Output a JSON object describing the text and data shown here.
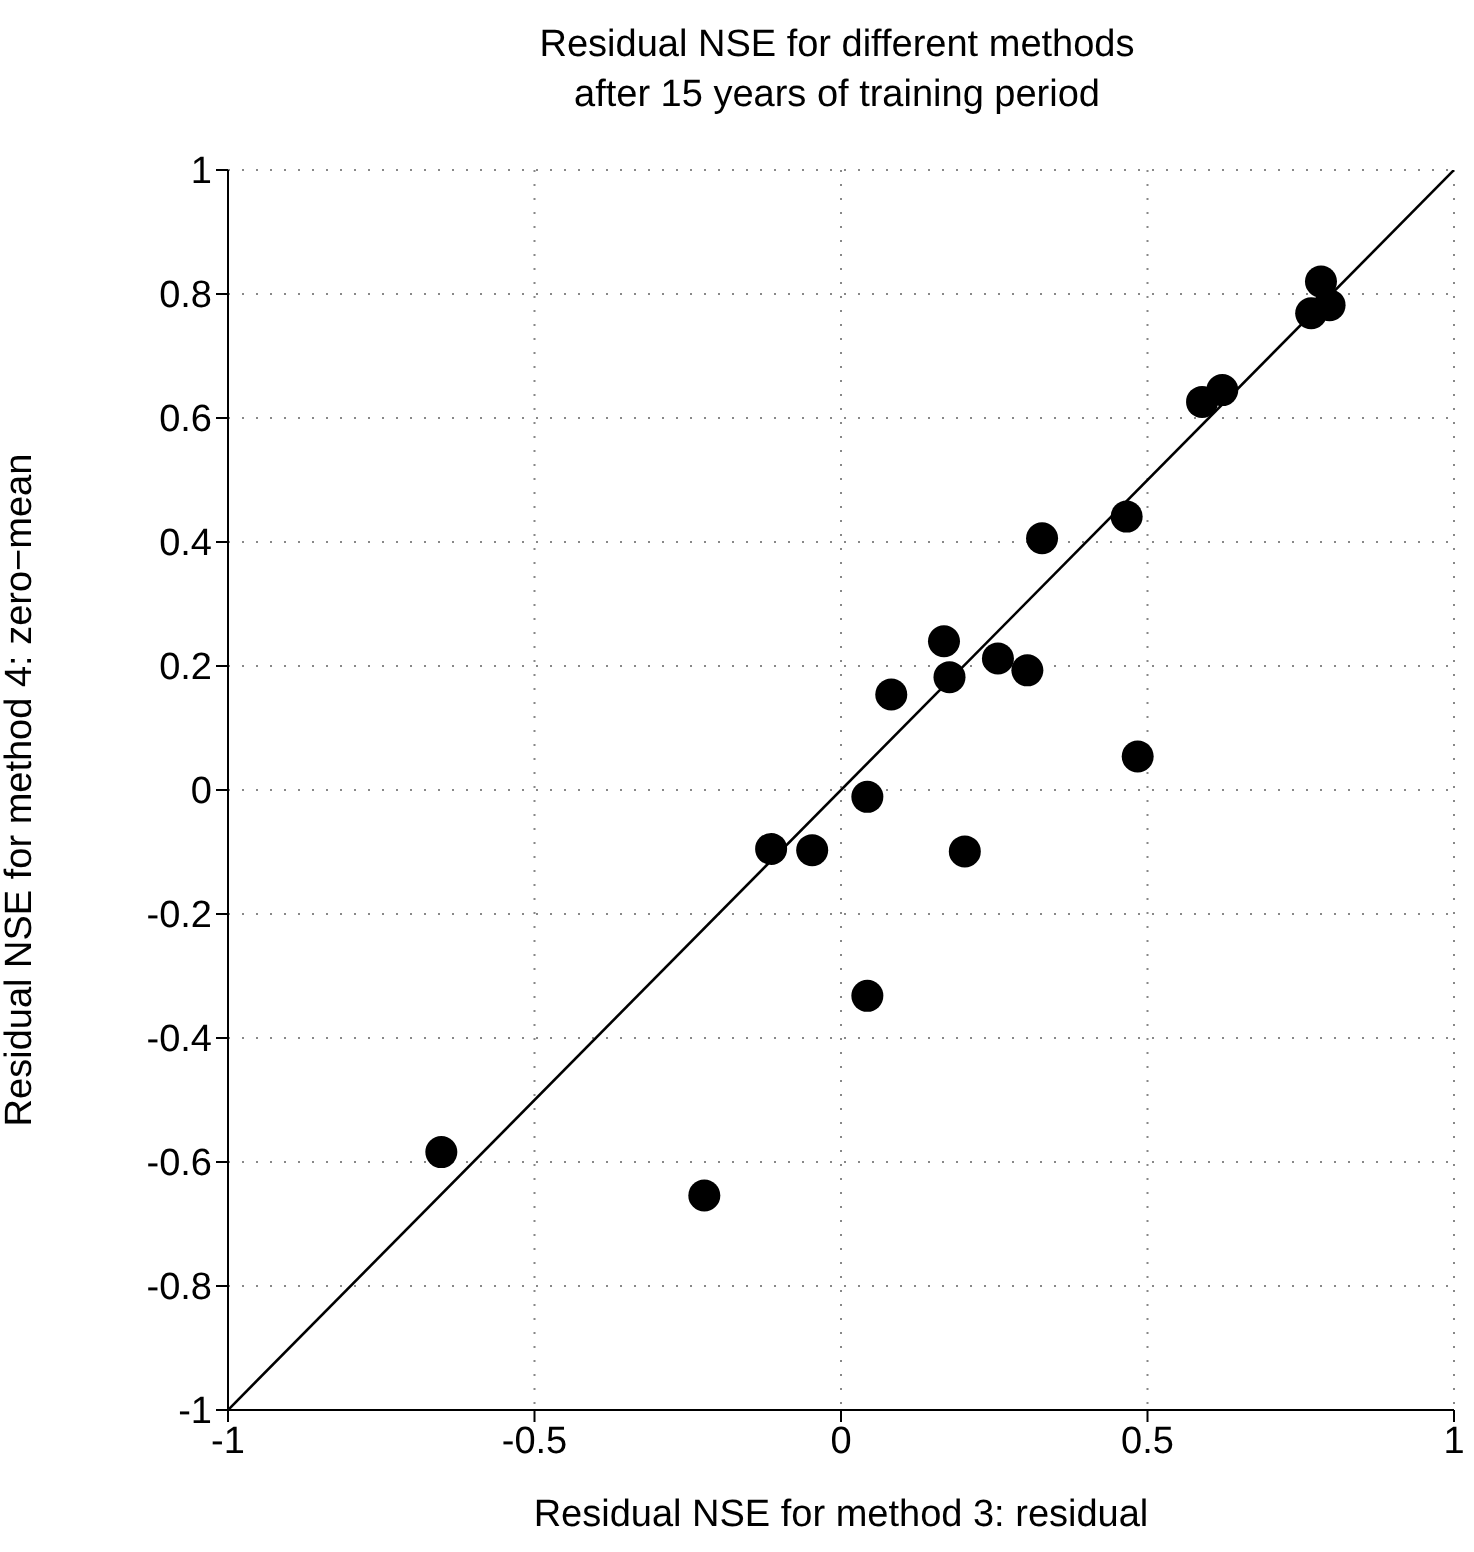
{
  "chart_data": {
    "type": "scatter",
    "title": "Residual NSE for different methods\nafter 15 years of training period",
    "xlabel": "Residual NSE for method 3: residual",
    "ylabel": "Residual NSE for method 4: zero−mean",
    "x": [
      0.783,
      0.767,
      0.797,
      0.589,
      0.622,
      0.466,
      0.328,
      0.168,
      0.177,
      0.256,
      0.304,
      0.082,
      0.484,
      0.043,
      -0.047,
      0.202,
      0.043,
      -0.114,
      -0.652,
      -0.223
    ],
    "series": [
      {
        "color": "#000000",
        "values": [
          0.82,
          0.769,
          0.782,
          0.626,
          0.645,
          0.441,
          0.406,
          0.24,
          0.182,
          0.212,
          0.193,
          0.154,
          0.054,
          -0.011,
          -0.097,
          -0.099,
          -0.332,
          -0.095,
          -0.584,
          -0.654
        ]
      },
      {
        "type": "line",
        "color": "#000000",
        "x": [
          -1,
          1
        ],
        "values": [
          -1,
          1
        ],
        "marker": "none"
      }
    ],
    "xlim": [
      -1,
      1
    ],
    "xticks": [
      -1,
      -0.5,
      0,
      0.5,
      1
    ],
    "ylim": [
      -1,
      1
    ],
    "yticks": [
      -1,
      -0.8,
      -0.6,
      -0.4,
      -0.2,
      0,
      0.2,
      0.4,
      0.6,
      0.8,
      1
    ],
    "grid": true,
    "marker": "circle"
  }
}
